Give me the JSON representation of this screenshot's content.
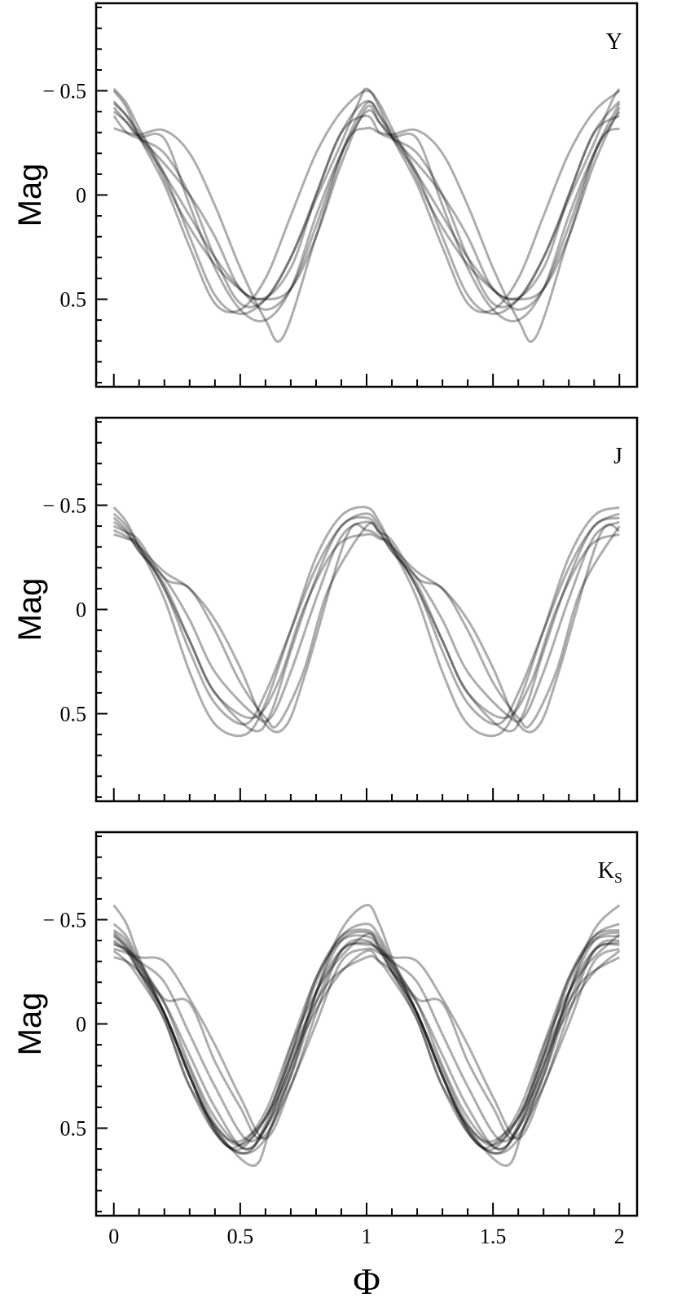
{
  "chart_data": [
    {
      "type": "line",
      "band_label": "Y",
      "band_subscript": "",
      "ylabel": "Mag",
      "xlim": [
        -0.07,
        2.07
      ],
      "ylim": [
        0.92,
        -0.92
      ],
      "y_inverted": true,
      "yticks": [
        -0.5,
        0,
        0.5
      ],
      "ytick_labels": [
        "− 0.5",
        "0",
        "0.5"
      ],
      "grid": false,
      "series": [
        {
          "values": [
            -0.51,
            -0.44,
            -0.32,
            -0.1,
            0.2,
            0.48,
            0.57,
            0.5,
            0.3,
            0.02,
            -0.25,
            -0.45,
            -0.51
          ],
          "x": [
            0,
            0.05,
            0.1,
            0.2,
            0.3,
            0.4,
            0.5,
            0.6,
            0.7,
            0.8,
            0.9,
            0.97,
            1.0
          ]
        },
        {
          "values": [
            -0.5,
            -0.42,
            -0.28,
            -0.05,
            0.25,
            0.52,
            0.55,
            0.4,
            0.1,
            -0.2,
            -0.4,
            -0.5
          ],
          "x": [
            0,
            0.05,
            0.1,
            0.2,
            0.3,
            0.4,
            0.5,
            0.6,
            0.7,
            0.8,
            0.9,
            1.0
          ]
        },
        {
          "values": [
            -0.44,
            -0.38,
            -0.28,
            -0.1,
            0.1,
            0.3,
            0.45,
            0.55,
            0.45,
            0.15,
            -0.2,
            -0.44
          ],
          "x": [
            0,
            0.05,
            0.1,
            0.2,
            0.3,
            0.4,
            0.5,
            0.6,
            0.7,
            0.8,
            0.9,
            1.0
          ]
        },
        {
          "values": [
            -0.42,
            -0.35,
            -0.28,
            -0.15,
            0.0,
            0.2,
            0.45,
            0.5,
            0.45,
            0.2,
            -0.15,
            -0.42
          ],
          "x": [
            0,
            0.05,
            0.1,
            0.2,
            0.3,
            0.4,
            0.5,
            0.6,
            0.7,
            0.8,
            0.9,
            1.0
          ]
        },
        {
          "values": [
            -0.4,
            -0.35,
            -0.28,
            -0.27,
            0.05,
            0.35,
            0.55,
            0.6,
            0.45,
            0.1,
            -0.2,
            -0.4
          ],
          "x": [
            0,
            0.05,
            0.1,
            0.2,
            0.3,
            0.4,
            0.5,
            0.6,
            0.7,
            0.8,
            0.9,
            1.0
          ]
        },
        {
          "values": [
            -0.38,
            -0.3,
            -0.27,
            -0.2,
            0.0,
            0.3,
            0.52,
            0.5,
            0.3,
            0.0,
            -0.3,
            -0.38
          ],
          "x": [
            0,
            0.05,
            0.1,
            0.2,
            0.3,
            0.4,
            0.5,
            0.6,
            0.7,
            0.8,
            0.9,
            1.0
          ]
        },
        {
          "values": [
            -0.32,
            -0.3,
            -0.29,
            -0.31,
            -0.2,
            0.05,
            0.35,
            0.6,
            0.68,
            0.2,
            -0.25,
            -0.32
          ],
          "x": [
            0,
            0.05,
            0.1,
            0.2,
            0.3,
            0.4,
            0.5,
            0.6,
            0.67,
            0.8,
            0.92,
            1.0
          ]
        },
        {
          "values": [
            -0.45,
            -0.35,
            -0.2,
            0.05,
            0.25,
            0.4,
            0.5,
            0.35,
            0.0,
            -0.3,
            -0.45
          ],
          "x": [
            0,
            0.07,
            0.15,
            0.25,
            0.35,
            0.45,
            0.58,
            0.7,
            0.8,
            0.9,
            1.0
          ]
        }
      ]
    },
    {
      "type": "line",
      "band_label": "J",
      "band_subscript": "",
      "ylabel": "Mag",
      "xlim": [
        -0.07,
        2.07
      ],
      "ylim": [
        0.92,
        -0.92
      ],
      "y_inverted": true,
      "yticks": [
        -0.5,
        0,
        0.5
      ],
      "ytick_labels": [
        "− 0.5",
        "0",
        "0.5"
      ],
      "grid": false,
      "series": [
        {
          "values": [
            -0.49,
            -0.42,
            -0.3,
            -0.05,
            0.3,
            0.55,
            0.6,
            0.45,
            0.1,
            -0.25,
            -0.45,
            -0.49
          ],
          "x": [
            0,
            0.05,
            0.1,
            0.2,
            0.3,
            0.4,
            0.52,
            0.6,
            0.7,
            0.8,
            0.9,
            1.0
          ]
        },
        {
          "values": [
            -0.46,
            -0.4,
            -0.3,
            -0.1,
            0.2,
            0.45,
            0.55,
            0.4,
            0.1,
            -0.2,
            -0.4,
            -0.46
          ],
          "x": [
            0,
            0.05,
            0.1,
            0.2,
            0.3,
            0.4,
            0.52,
            0.6,
            0.7,
            0.8,
            0.9,
            1.0
          ]
        },
        {
          "values": [
            -0.44,
            -0.38,
            -0.28,
            -0.12,
            0.15,
            0.4,
            0.58,
            0.5,
            0.2,
            -0.15,
            -0.4,
            -0.44
          ],
          "x": [
            0,
            0.05,
            0.1,
            0.2,
            0.3,
            0.4,
            0.55,
            0.62,
            0.7,
            0.8,
            0.9,
            1.0
          ]
        },
        {
          "values": [
            -0.42,
            -0.37,
            -0.28,
            -0.15,
            0.05,
            0.3,
            0.5,
            0.52,
            0.3,
            -0.05,
            -0.35,
            -0.42
          ],
          "x": [
            0,
            0.05,
            0.1,
            0.2,
            0.3,
            0.4,
            0.55,
            0.62,
            0.7,
            0.8,
            0.9,
            1.0
          ]
        },
        {
          "values": [
            -0.4,
            -0.37,
            -0.33,
            -0.15,
            -0.1,
            0.1,
            0.35,
            0.52,
            0.55,
            0.3,
            -0.1,
            -0.4
          ],
          "x": [
            0,
            0.05,
            0.1,
            0.2,
            0.3,
            0.4,
            0.5,
            0.6,
            0.65,
            0.75,
            0.85,
            1.0
          ]
        },
        {
          "values": [
            -0.38,
            -0.35,
            -0.3,
            -0.18,
            -0.1,
            0.05,
            0.28,
            0.55,
            0.56,
            0.3,
            -0.35,
            -0.38
          ],
          "x": [
            0,
            0.05,
            0.1,
            0.2,
            0.3,
            0.4,
            0.5,
            0.6,
            0.68,
            0.76,
            0.92,
            1.0
          ]
        },
        {
          "values": [
            -0.36,
            -0.34,
            -0.31,
            -0.1,
            0.15,
            0.4,
            0.52,
            0.35,
            0.0,
            -0.3,
            -0.36
          ],
          "x": [
            0,
            0.05,
            0.1,
            0.2,
            0.3,
            0.4,
            0.55,
            0.65,
            0.75,
            0.88,
            1.0
          ]
        }
      ]
    },
    {
      "type": "line",
      "band_label": "K",
      "band_subscript": "S",
      "ylabel": "Mag",
      "xlabel": "Φ",
      "xlim": [
        -0.07,
        2.07
      ],
      "ylim": [
        0.92,
        -0.92
      ],
      "y_inverted": true,
      "yticks": [
        -0.5,
        0,
        0.5
      ],
      "ytick_labels": [
        "− 0.5",
        "0",
        "0.5"
      ],
      "xticks": [
        0,
        0.5,
        1,
        1.5,
        2
      ],
      "xtick_labels": [
        "0",
        "0.5",
        "1",
        "1.5",
        "2"
      ],
      "grid": false,
      "series": [
        {
          "values": [
            -0.57,
            -0.48,
            -0.32,
            -0.05,
            0.25,
            0.5,
            0.62,
            0.55,
            0.25,
            -0.15,
            -0.45,
            -0.57
          ],
          "x": [
            0,
            0.05,
            0.1,
            0.2,
            0.3,
            0.4,
            0.5,
            0.6,
            0.7,
            0.8,
            0.9,
            1.0
          ]
        },
        {
          "values": [
            -0.48,
            -0.42,
            -0.3,
            -0.05,
            0.22,
            0.48,
            0.58,
            0.45,
            0.15,
            -0.2,
            -0.42,
            -0.48
          ],
          "x": [
            0,
            0.05,
            0.1,
            0.2,
            0.3,
            0.4,
            0.5,
            0.6,
            0.7,
            0.8,
            0.9,
            1.0
          ]
        },
        {
          "values": [
            -0.45,
            -0.4,
            -0.28,
            -0.05,
            0.25,
            0.52,
            0.62,
            0.48,
            0.15,
            -0.22,
            -0.42,
            -0.45
          ],
          "x": [
            0,
            0.05,
            0.1,
            0.2,
            0.3,
            0.4,
            0.52,
            0.6,
            0.7,
            0.8,
            0.9,
            1.0
          ]
        },
        {
          "values": [
            -0.44,
            -0.38,
            -0.28,
            -0.1,
            0.2,
            0.45,
            0.6,
            0.5,
            0.2,
            -0.15,
            -0.4,
            -0.44
          ],
          "x": [
            0,
            0.05,
            0.1,
            0.2,
            0.3,
            0.4,
            0.52,
            0.6,
            0.7,
            0.8,
            0.9,
            1.0
          ]
        },
        {
          "values": [
            -0.42,
            -0.37,
            -0.26,
            -0.05,
            0.25,
            0.55,
            0.58,
            0.42,
            0.1,
            -0.22,
            -0.4,
            -0.42
          ],
          "x": [
            0,
            0.05,
            0.1,
            0.2,
            0.3,
            0.42,
            0.5,
            0.6,
            0.7,
            0.8,
            0.9,
            1.0
          ]
        },
        {
          "values": [
            -0.4,
            -0.35,
            -0.25,
            -0.05,
            0.25,
            0.5,
            0.68,
            0.5,
            0.15,
            -0.2,
            -0.38,
            -0.4
          ],
          "x": [
            0,
            0.05,
            0.1,
            0.2,
            0.3,
            0.4,
            0.55,
            0.62,
            0.72,
            0.82,
            0.92,
            1.0
          ]
        },
        {
          "values": [
            -0.39,
            -0.35,
            -0.3,
            -0.2,
            0.05,
            0.3,
            0.55,
            0.5,
            0.25,
            -0.1,
            -0.35,
            -0.39
          ],
          "x": [
            0,
            0.05,
            0.1,
            0.2,
            0.3,
            0.4,
            0.52,
            0.6,
            0.7,
            0.8,
            0.9,
            1.0
          ]
        },
        {
          "values": [
            -0.38,
            -0.36,
            -0.32,
            -0.3,
            -0.12,
            0.1,
            0.35,
            0.55,
            0.3,
            -0.05,
            -0.35,
            -0.38
          ],
          "x": [
            0,
            0.05,
            0.1,
            0.2,
            0.3,
            0.4,
            0.5,
            0.6,
            0.7,
            0.8,
            0.9,
            1.0
          ]
        },
        {
          "values": [
            -0.36,
            -0.34,
            -0.3,
            -0.12,
            -0.1,
            0.18,
            0.4,
            0.55,
            0.35,
            0.0,
            -0.3,
            -0.36
          ],
          "x": [
            0,
            0.05,
            0.1,
            0.2,
            0.3,
            0.4,
            0.5,
            0.58,
            0.68,
            0.8,
            0.9,
            1.0
          ]
        },
        {
          "values": [
            -0.35,
            -0.3,
            -0.22,
            -0.02,
            0.3,
            0.55,
            0.52,
            0.35,
            0.05,
            -0.22,
            -0.35
          ],
          "x": [
            0,
            0.05,
            0.1,
            0.2,
            0.3,
            0.45,
            0.55,
            0.65,
            0.75,
            0.88,
            1.0
          ]
        },
        {
          "values": [
            -0.32,
            -0.3,
            -0.25,
            -0.1,
            0.15,
            0.4,
            0.6,
            0.45,
            0.1,
            -0.2,
            -0.32
          ],
          "x": [
            0,
            0.05,
            0.1,
            0.2,
            0.3,
            0.4,
            0.52,
            0.62,
            0.72,
            0.85,
            1.0
          ]
        },
        {
          "values": [
            -0.43,
            -0.36,
            -0.25,
            -0.02,
            0.3,
            0.52,
            0.6,
            0.4,
            0.05,
            -0.25,
            -0.43
          ],
          "x": [
            0,
            0.05,
            0.1,
            0.2,
            0.3,
            0.4,
            0.5,
            0.62,
            0.72,
            0.85,
            1.0
          ]
        }
      ]
    }
  ]
}
